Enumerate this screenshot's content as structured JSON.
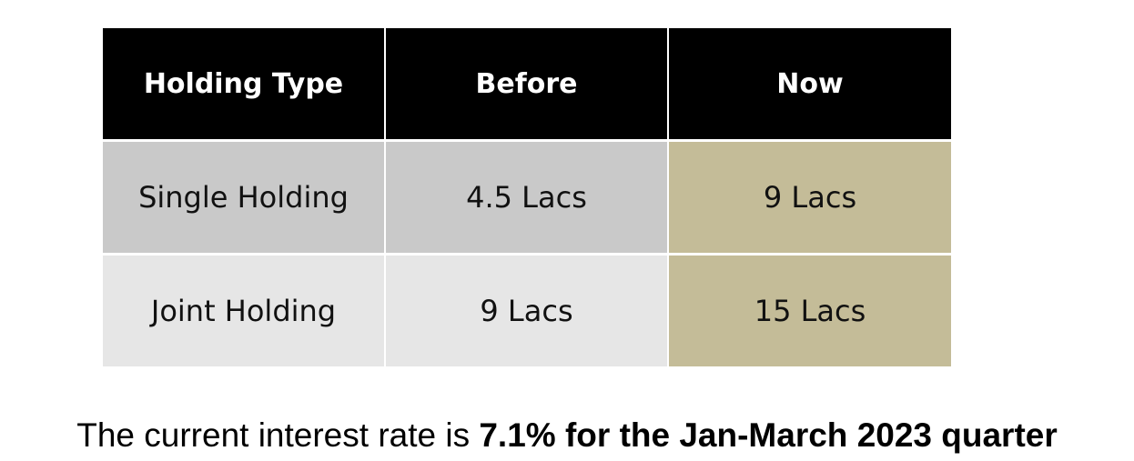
{
  "table": {
    "headers": [
      "Holding Type",
      "Before",
      "Now"
    ],
    "rows": [
      [
        "Single Holding",
        "4.5 Lacs",
        "9 Lacs"
      ],
      [
        "Joint Holding",
        "9 Lacs",
        "15 Lacs"
      ]
    ]
  },
  "footer": {
    "text_plain": "The current interest rate is ",
    "text_bold": "7.1% for the Jan-March 2023 quarter"
  },
  "colors": {
    "header_bg": "#000000",
    "row1_bg": "#c9c9c9",
    "row2_bg": "#e6e6e6",
    "highlight_now": "#c4bc98"
  }
}
